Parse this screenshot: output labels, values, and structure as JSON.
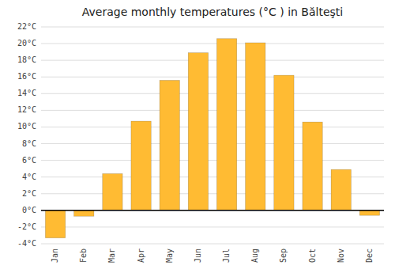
{
  "chart_data": {
    "type": "bar",
    "title": "Average monthly temperatures (°C ) in Bălteşti",
    "categories": [
      "Jan",
      "Feb",
      "Mar",
      "Apr",
      "May",
      "Jun",
      "Jul",
      "Aug",
      "Sep",
      "Oct",
      "Nov",
      "Dec"
    ],
    "values": [
      -3.3,
      -0.7,
      4.4,
      10.7,
      15.6,
      18.9,
      20.6,
      20.1,
      16.2,
      10.6,
      4.9,
      -0.6
    ],
    "color": "#FFBB33",
    "ylim": [
      -4,
      22
    ],
    "yticks": [
      {
        "value": -4,
        "label": "-4°C"
      },
      {
        "value": -2,
        "label": "-2°C"
      },
      {
        "value": 0,
        "label": "0°C"
      },
      {
        "value": 2,
        "label": "2°C"
      },
      {
        "value": 4,
        "label": "4°C"
      },
      {
        "value": 6,
        "label": "6°C"
      },
      {
        "value": 8,
        "label": "8°C"
      },
      {
        "value": 10,
        "label": "10°C"
      },
      {
        "value": 12,
        "label": "12°C"
      },
      {
        "value": 14,
        "label": "14°C"
      },
      {
        "value": 16,
        "label": "16°C"
      },
      {
        "value": 18,
        "label": "18°C"
      },
      {
        "value": 20,
        "label": "20°C"
      },
      {
        "value": 22,
        "label": "22°C"
      }
    ],
    "grid": true
  }
}
